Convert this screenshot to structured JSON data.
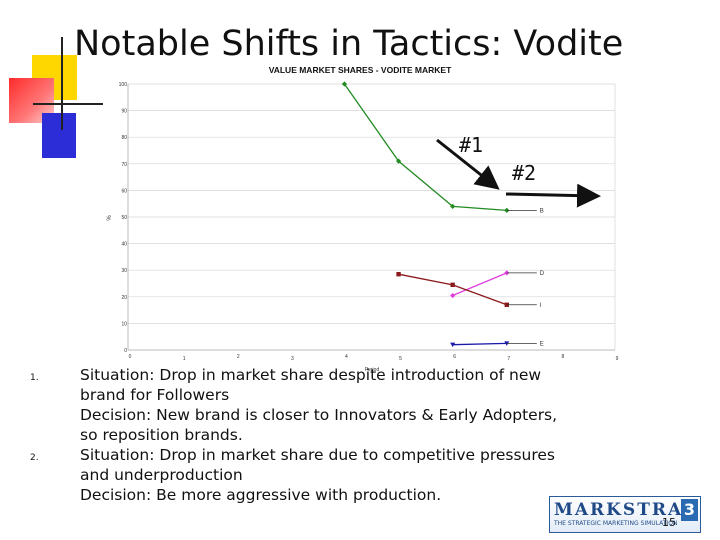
{
  "slide": {
    "title": "Notable Shifts in Tactics: Vodite",
    "page_number": "15"
  },
  "annotations": {
    "note1": "#1",
    "note2": "#2"
  },
  "list": [
    {
      "number": "1.",
      "lines": [
        "Situation: Drop in market share despite introduction of new",
        "brand for Followers",
        "Decision: New brand is closer to Innovators & Early Adopters,",
        "so reposition brands."
      ]
    },
    {
      "number": "2.",
      "lines": [
        "Situation: Drop in market share due to competitive pressures",
        "and underproduction",
        "Decision: Be more aggressive with production."
      ]
    }
  ],
  "logo": {
    "word": "MARKSTRAT",
    "number": "3",
    "tagline": "THE STRATEGIC MARKETING SIMULATION"
  },
  "chart_data": {
    "type": "line",
    "title": "VALUE MARKET SHARES - VODITE MARKET",
    "xlabel": "Period",
    "ylabel": "%",
    "x_ticks": [
      "0",
      "1",
      "2",
      "3",
      "4",
      "5",
      "6",
      "7",
      "8",
      "9"
    ],
    "y_ticks": [
      "0",
      "10",
      "20",
      "30",
      "40",
      "50",
      "60",
      "70",
      "80",
      "90",
      "100"
    ],
    "xlim": [
      0,
      9
    ],
    "ylim": [
      0,
      100
    ],
    "grid": true,
    "series": [
      {
        "name": "B",
        "color": "#228b22",
        "points": [
          [
            4,
            100
          ],
          [
            5,
            71
          ],
          [
            6,
            54
          ],
          [
            7,
            52.5
          ]
        ]
      },
      {
        "name": "D",
        "color": "#e040e0",
        "points": [
          [
            6,
            20.5
          ],
          [
            7,
            29
          ]
        ]
      },
      {
        "name": "I",
        "color": "#8b1a1a",
        "points": [
          [
            5,
            28.5
          ],
          [
            6,
            24.5
          ],
          [
            7,
            17
          ]
        ]
      },
      {
        "name": "E",
        "color": "#1a1aa8",
        "points": [
          [
            6,
            2
          ],
          [
            7,
            2.5
          ]
        ]
      }
    ]
  }
}
